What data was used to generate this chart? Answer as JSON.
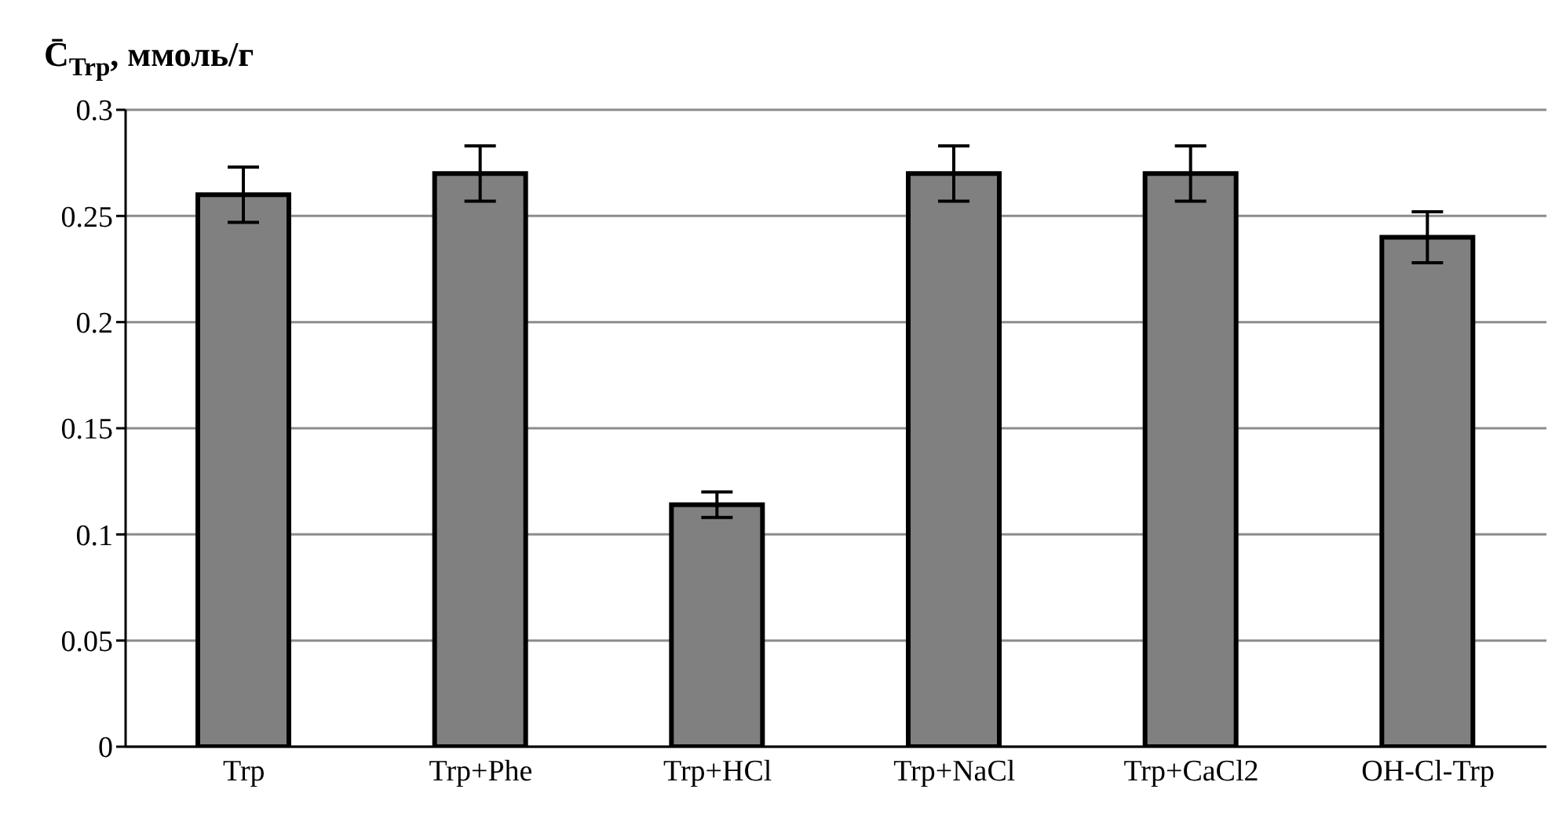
{
  "chart_data": {
    "type": "bar",
    "ylabel": "C̄$_{Trp}$, ммоль/г",
    "categories": [
      "Trp",
      "Trp+Phe",
      "Trp+HCl",
      "Trp+NaCl",
      "Trp+CaCl2",
      "OH-Cl-Trp"
    ],
    "values": [
      0.26,
      0.27,
      0.114,
      0.27,
      0.27,
      0.24
    ],
    "errors": [
      0.013,
      0.013,
      0.006,
      0.013,
      0.013,
      0.012
    ],
    "color": "#808080",
    "ylim": [
      0,
      0.3
    ],
    "yticks": [
      0,
      0.05,
      0.1,
      0.15,
      0.2,
      0.25,
      0.3
    ],
    "grid": "y",
    "legend": false
  }
}
